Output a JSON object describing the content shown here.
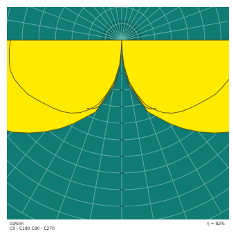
{
  "chart_data": {
    "type": "polar",
    "title": "",
    "ring_values": [
      50,
      100,
      150,
      200,
      250,
      300,
      350,
      400,
      450,
      500,
      550,
      600
    ],
    "r_max": 600,
    "radial_line_step_deg": 10,
    "series": [
      {
        "angles_deg": [
          0,
          10,
          20,
          30,
          35,
          40,
          45,
          50,
          55,
          60,
          65,
          70,
          75,
          80,
          85,
          90
        ],
        "values": [
          20,
          135,
          230,
          290,
          325,
          360,
          395,
          430,
          460,
          490,
          500,
          495,
          480,
          470,
          465,
          450
        ],
        "fill_color": "#ffea00",
        "stroke_color": "#665500"
      },
      {
        "angles_deg": [
          0,
          5,
          10,
          15,
          20,
          25,
          30,
          35,
          40,
          45,
          50,
          55,
          60,
          65,
          70,
          75,
          80,
          85,
          90
        ],
        "values": [
          20,
          75,
          125,
          165,
          205,
          230,
          252,
          268,
          280,
          290,
          300,
          312,
          326,
          335,
          344,
          348,
          344,
          340,
          335
        ],
        "fill_color": "#ffea00",
        "stroke_color": "#665500"
      },
      {
        "angles_deg": [
          0,
          3,
          5,
          8,
          10,
          13,
          15,
          18,
          20,
          22,
          25,
          27
        ],
        "values": [
          0,
          60,
          95,
          130,
          150,
          175,
          188,
          205,
          215,
          222,
          228,
          230
        ],
        "fill_color": "none",
        "stroke_color": "#4a4a30"
      }
    ],
    "colors": {
      "background": "#107a74",
      "grid": "#5fb0a4",
      "dark_disc": "#0c6660"
    }
  },
  "footer": {
    "left_line1": "cd/klm",
    "left_line2": "C0 - C180     C90 - C270",
    "right": "η = 82%"
  }
}
